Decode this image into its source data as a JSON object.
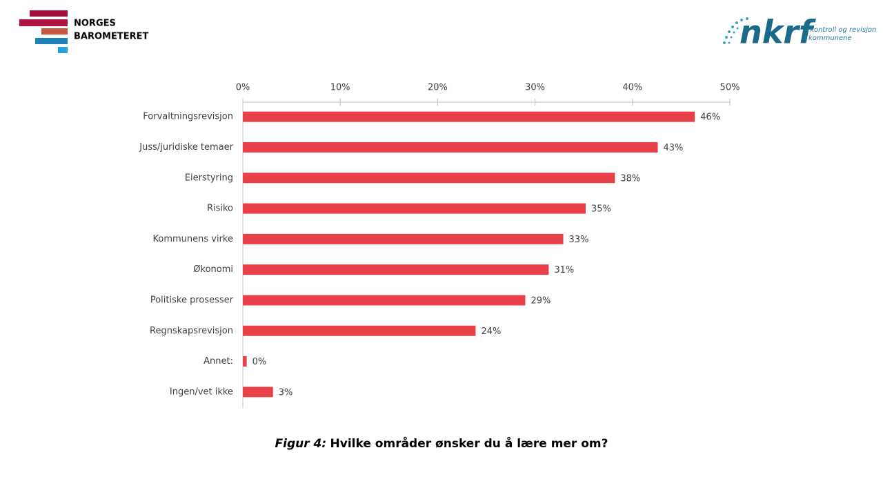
{
  "logo_left": {
    "lines": [
      "NORGES",
      "BAROMETERET"
    ]
  },
  "logo_right": {
    "name": "nkrf",
    "tagline": [
      "– kontroll og revisjon",
      "i kommunene"
    ]
  },
  "chart_data": {
    "type": "hbar",
    "caption": {
      "label": "Figur 4:",
      "text": "Hvilke områder ønsker du å lære mer om?"
    },
    "categories": [
      "Forvaltningsrevisjon",
      "Juss/juridiske temaer",
      "Eierstyring",
      "Risiko",
      "Kommunens virke",
      "Økonomi",
      "Politiske prosesser",
      "Regnskapsrevisjon",
      "Annet:",
      "Ingen/vet ikke"
    ],
    "values": [
      46.4,
      42.6,
      38.2,
      35.2,
      32.9,
      31.4,
      29.0,
      23.9,
      0.4,
      3.1
    ],
    "value_labels": [
      "46%",
      "43%",
      "38%",
      "35%",
      "33%",
      "31%",
      "29%",
      "24%",
      "0%",
      "3%"
    ],
    "color": "#e8414a",
    "xlim": [
      0,
      50
    ],
    "xticks": [
      {
        "value": 0,
        "label": "0%"
      },
      {
        "value": 10,
        "label": "10%"
      },
      {
        "value": 20,
        "label": "20%"
      },
      {
        "value": 30,
        "label": "30%"
      },
      {
        "value": 40,
        "label": "40%"
      },
      {
        "value": 50,
        "label": "50%"
      }
    ]
  }
}
